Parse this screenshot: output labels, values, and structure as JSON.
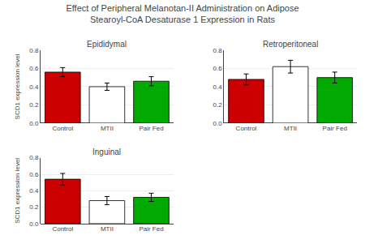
{
  "title": "Effect of Peripheral Melanotan-II Administration on Adipose\nStearoyl-CoA Desaturase 1 Expression in Rats",
  "chart_data": [
    {
      "type": "bar",
      "title": "Epididymal",
      "categories": [
        "Control",
        "MTII",
        "Pair Fed"
      ],
      "values": [
        0.56,
        0.4,
        0.46
      ],
      "errors": [
        0.05,
        0.04,
        0.05
      ],
      "colors": [
        "#CC0000",
        "#FFFFFF",
        "#00AA00"
      ],
      "ylabel": "SCD1 expression level",
      "ylim": [
        0,
        0.8
      ],
      "yticks": [
        {
          "value": 0,
          "label": "0.0"
        },
        0.2,
        0.4,
        0.6,
        0.8
      ]
    },
    {
      "type": "bar",
      "title": "Retroperitoneal",
      "categories": [
        "Control",
        "MTII",
        "Pair Fed"
      ],
      "values": [
        0.48,
        0.62,
        0.5
      ],
      "errors": [
        0.06,
        0.07,
        0.06
      ],
      "colors": [
        "#CC0000",
        "#FFFFFF",
        "#00AA00"
      ],
      "ylim": [
        0,
        0.8
      ],
      "yticks": [
        {
          "value": 0,
          "label": "0.0"
        },
        0.2,
        0.4,
        0.6,
        0.8
      ]
    },
    {
      "type": "bar",
      "title": "Inguinal",
      "categories": [
        "Control",
        "MTII",
        "Pair Fed"
      ],
      "values": [
        0.54,
        0.28,
        0.32
      ],
      "errors": [
        0.07,
        0.05,
        0.05
      ],
      "colors": [
        "#CC0000",
        "#FFFFFF",
        "#00AA00"
      ],
      "ylabel": "SCD1 expression level",
      "ylim": [
        0,
        0.8
      ],
      "yticks": [
        {
          "value": 0,
          "label": "0.0"
        },
        0.2,
        0.4,
        0.6,
        0.8
      ]
    }
  ]
}
